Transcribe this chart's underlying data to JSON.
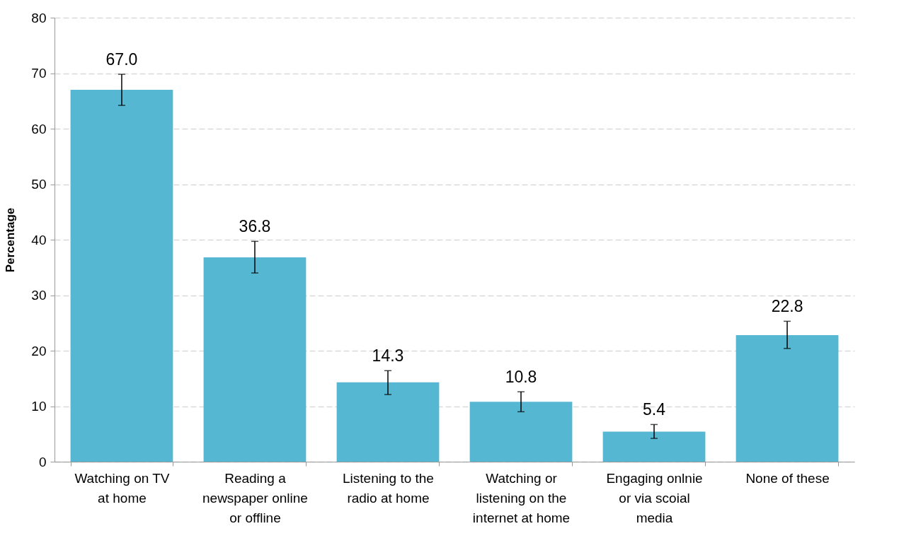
{
  "chart_data": {
    "type": "bar",
    "ylabel": "Percentage",
    "categories": [
      "Watching on TV at home",
      "Reading a newspaper online or offline",
      "Listening to the radio at home",
      "Watching or listening on the internet at home",
      "Engaging onlnie or via scoial media",
      "None of these"
    ],
    "values": [
      67.0,
      36.8,
      14.3,
      10.8,
      5.4,
      22.8
    ],
    "value_labels": [
      "67.0",
      "36.8",
      "14.3",
      "10.8",
      "5.4",
      "22.8"
    ],
    "errors": [
      [
        64.2,
        69.8
      ],
      [
        34.0,
        39.7
      ],
      [
        12.1,
        16.4
      ],
      [
        9.0,
        12.6
      ],
      [
        4.2,
        6.7
      ],
      [
        20.4,
        25.3
      ]
    ],
    "color": "#56b7d3",
    "ylim": [
      0,
      80
    ],
    "yticks": [
      0,
      10,
      20,
      30,
      40,
      50,
      60,
      70,
      80
    ],
    "grid": "y"
  }
}
